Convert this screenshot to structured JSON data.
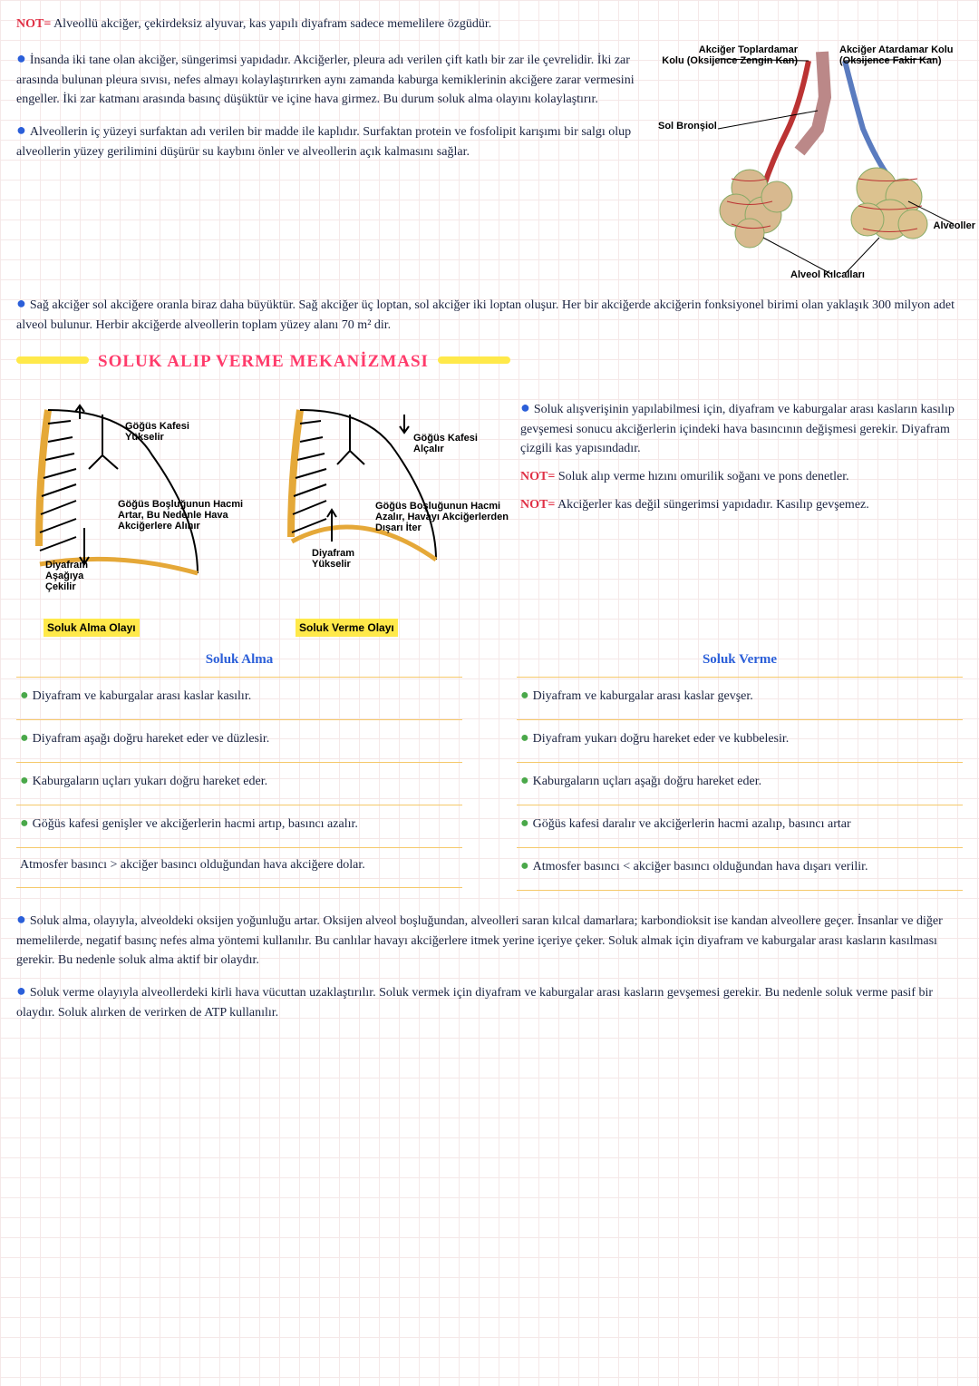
{
  "note1_prefix": "NOT=",
  "note1": "Alveollü akciğer, çekirdeksiz alyuvar, kas yapılı diyafram sadece memelilere özgüdür.",
  "p1": "İnsanda iki tane olan akciğer, süngerimsi yapıdadır. Akciğerler, pleura adı verilen çift katlı bir zar ile çevrelidir. İki zar arasında bulunan pleura sıvısı, nefes almayı kolaylaştırırken aynı zamanda kaburga kemiklerinin akciğere zarar vermesini engeller. İki zar katmanı arasında basınç düşüktür ve içine hava girmez. Bu durum soluk alma olayını kolaylaştırır.",
  "p2": "Alveollerin iç yüzeyi surfaktan adı verilen bir madde ile kaplıdır. Surfaktan protein ve fosfolipit karışımı bir salgı olup alveollerin yüzey gerilimini düşürür su kaybını önler ve alveollerin açık kalmasını sağlar.",
  "p3": "Sağ akciğer sol akciğere oranla biraz daha büyüktür. Sağ akciğer üç loptan, sol akciğer iki loptan oluşur. Her bir akciğerde akciğerin fonksiyonel birimi olan yaklaşık 300 milyon adet alveol bulunur. Herbir akciğerde alveollerin toplam yüzey alanı 70 m² dir.",
  "alveol": {
    "l1": "Akciğer Toplardamar\nKolu (Oksijence Zengin Kan)",
    "l2": "Akciğer Atardamar Kolu\n(Oksijence Fakir Kan)",
    "l3": "Sol Bronşiol",
    "l4": "Alveoller",
    "l5": "Alveol Kılcalları"
  },
  "title": "SOLUK ALIP VERME MEKANİZMASI",
  "mech": {
    "left": {
      "a": "Göğüs Kafesi\nYükselir",
      "b": "Göğüs Boşluğunun Hacmi\nArtar, Bu Nedenle Hava\nAkciğerlere Alınır",
      "c": "Diyafram\nAşağıya\nÇekilir",
      "cap": "Soluk Alma Olayı"
    },
    "right": {
      "a": "Göğüs Kafesi\nAlçalır",
      "b": "Göğüs Boşluğunun Hacmi\nAzalır, Havayı Akciğerlerden\nDışarı İter",
      "c": "Diyafram\nYükselir",
      "cap": "Soluk Verme Olayı"
    }
  },
  "right_notes": {
    "r1": "Soluk alışverişinin yapılabilmesi için, diyafram ve kaburgalar arası kasların kasılıp gevşemesi sonucu akciğerlerin içindeki hava basıncının değişmesi gerekir. Diyafram çizgili kas yapısındadır.",
    "r2_pre": "NOT=",
    "r2": "Soluk alıp verme hızını omurilik soğanı ve pons denetler.",
    "r3_pre": "NOT=",
    "r3": "Akciğerler kas değil süngerimsi yapıdadır. Kasılıp gevşemez."
  },
  "cols": {
    "left_title": "Soluk Alma",
    "right_title": "Soluk Verme",
    "left": [
      "Diyafram ve kaburgalar arası kaslar kasılır.",
      "Diyafram aşağı doğru hareket eder ve düzlesir.",
      "Kaburgaların uçları yukarı doğru hareket eder.",
      "Göğüs kafesi genişler ve akciğerlerin hacmi artıp, basıncı azalır.",
      "Atmosfer basıncı > akciğer basıncı olduğundan hava akciğere dolar."
    ],
    "right": [
      "Diyafram ve kaburgalar arası kaslar gevşer.",
      "Diyafram yukarı doğru hareket eder ve kubbelesir.",
      "Kaburgaların uçları aşağı doğru hareket eder.",
      "Göğüs kafesi daralır ve akciğerlerin hacmi azalıp, basıncı artar",
      "Atmosfer basıncı < akciğer basıncı olduğundan hava dışarı verilir."
    ]
  },
  "b1": "Soluk alma, olayıyla, alveoldeki oksijen yoğunluğu artar. Oksijen alveol boşluğundan, alveolleri saran kılcal damarlara; karbondioksit ise kandan alveollere geçer. İnsanlar ve diğer memelilerde, negatif basınç nefes alma yöntemi kullanılır. Bu canlılar havayı akciğerlere itmek yerine içeriye çeker. Soluk almak için diyafram ve kaburgalar arası kasların kasılması gerekir. Bu nedenle soluk alma aktif bir olaydır.",
  "b2": "Soluk verme olayıyla alveollerdeki kirli hava vücuttan uzaklaştırılır. Soluk vermek için diyafram ve kaburgalar arası kasların gevşemesi gerekir. Bu nedenle soluk verme pasif bir olaydır. Soluk alırken de verirken de ATP kullanılır."
}
